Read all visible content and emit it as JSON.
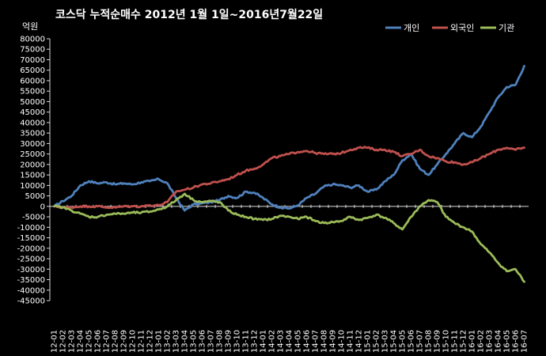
{
  "chart_data": {
    "type": "line",
    "title": "코스닥  누적순매수 2012년 1월 1일~2016년7월22일",
    "y_unit": "억원",
    "ylim": [
      -45000,
      80000
    ],
    "y_step": 5000,
    "grid": false,
    "legend_position": "top-right",
    "categories": [
      "12-01",
      "12-02",
      "12-03",
      "12-04",
      "12-05",
      "12-06",
      "12-07",
      "12-08",
      "12-09",
      "12-10",
      "12-11",
      "12-12",
      "13-01",
      "13-02",
      "13-03",
      "13-04",
      "13-05",
      "13-06",
      "13-07",
      "13-08",
      "13-09",
      "13-10",
      "13-11",
      "13-12",
      "14-01",
      "14-02",
      "14-03",
      "14-04",
      "14-05",
      "14-06",
      "14-07",
      "14-08",
      "14-09",
      "14-10",
      "14-11",
      "14-12",
      "15-01",
      "15-02",
      "15-03",
      "15-04",
      "15-05",
      "15-06",
      "15-07",
      "15-08",
      "15-09",
      "15-10",
      "15-11",
      "15-12",
      "16-01",
      "16-02",
      "16-03",
      "16-04",
      "16-05",
      "16-06",
      "16-07"
    ],
    "series": [
      {
        "name": "개인",
        "color": "#4f81bd",
        "values": [
          0,
          2500,
          5000,
          10000,
          12000,
          11000,
          11500,
          10500,
          11000,
          10500,
          11500,
          12000,
          13000,
          11000,
          4000,
          -2000,
          1000,
          1500,
          2000,
          3000,
          5000,
          4000,
          7000,
          6500,
          4000,
          1000,
          -500,
          -1000,
          500,
          4000,
          6000,
          9500,
          10500,
          10000,
          9000,
          10000,
          7000,
          8000,
          12000,
          15000,
          22000,
          25000,
          18000,
          15000,
          20000,
          25000,
          30000,
          35000,
          33000,
          38000,
          45000,
          52000,
          57000,
          58000,
          67000
        ]
      },
      {
        "name": "외국인",
        "color": "#c0504d",
        "values": [
          0,
          -500,
          -500,
          0,
          0,
          0,
          -500,
          -500,
          0,
          0,
          0,
          500,
          500,
          2000,
          7000,
          8000,
          9000,
          10500,
          11000,
          12000,
          13000,
          15000,
          17000,
          18000,
          20000,
          23000,
          24000,
          25000,
          26000,
          26500,
          25500,
          25000,
          25000,
          25500,
          27000,
          28000,
          28000,
          27000,
          27000,
          26000,
          24000,
          25000,
          27000,
          24000,
          23000,
          21500,
          21000,
          20000,
          21000,
          23000,
          25000,
          27000,
          28000,
          27000,
          28000
        ]
      },
      {
        "name": "기관",
        "color": "#9bbb59",
        "values": [
          0,
          -500,
          -2000,
          -3500,
          -5000,
          -5000,
          -4000,
          -3500,
          -3500,
          -3000,
          -3000,
          -2500,
          -1500,
          0,
          3000,
          6000,
          3000,
          2000,
          2500,
          2000,
          -2000,
          -4000,
          -5000,
          -6000,
          -6500,
          -6000,
          -4500,
          -5000,
          -6000,
          -5000,
          -7000,
          -8000,
          -7500,
          -7000,
          -5000,
          -6500,
          -5500,
          -4000,
          -5500,
          -8000,
          -11000,
          -5000,
          0,
          3000,
          2000,
          -5000,
          -8000,
          -10000,
          -12000,
          -18000,
          -22000,
          -27000,
          -31000,
          -30000,
          -36000
        ]
      }
    ]
  }
}
